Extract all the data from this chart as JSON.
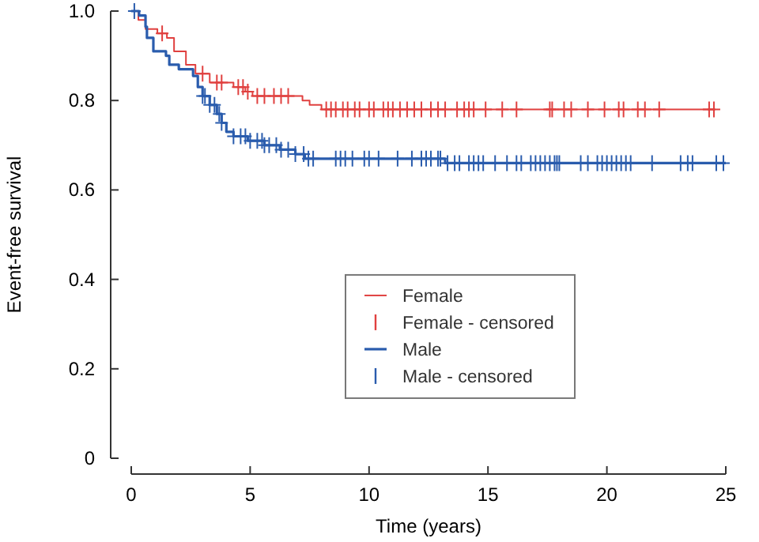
{
  "chart_data": {
    "type": "step",
    "xlabel": "Time (years)",
    "ylabel": "Event-free survival",
    "xlim": [
      0,
      25
    ],
    "xticks": [
      0,
      5,
      10,
      15,
      20,
      25
    ],
    "ylim": [
      0,
      1
    ],
    "yticks": [
      0,
      0.2,
      0.4,
      0.6,
      0.8,
      {
        "value": 1,
        "label": "1.0"
      }
    ],
    "grid": false,
    "legend": "bottom",
    "series": [
      {
        "name": "Female",
        "color": "#e0403f",
        "x": [
          0,
          0.3,
          0.6,
          1.1,
          1.5,
          1.8,
          2.3,
          2.7,
          3.3,
          4.3,
          4.8,
          5.1,
          7.2,
          7.5,
          8.0,
          24.5
        ],
        "values": [
          1,
          0.98,
          0.96,
          0.95,
          0.94,
          0.91,
          0.88,
          0.86,
          0.84,
          0.83,
          0.82,
          0.81,
          0.8,
          0.79,
          0.78,
          0.78
        ]
      },
      {
        "name": "Female - censored",
        "type": "scatter",
        "marker": "cross",
        "color": "#e0403f",
        "x": [
          1.3,
          3.0,
          3.6,
          3.8,
          4.5,
          4.7,
          4.9,
          5.3,
          5.6,
          6.0,
          6.3,
          6.6,
          8.2,
          8.4,
          8.6,
          8.9,
          9.1,
          9.4,
          9.6,
          10.0,
          10.2,
          10.6,
          10.8,
          11.0,
          11.3,
          11.6,
          11.9,
          12.2,
          12.6,
          12.9,
          13.2,
          13.7,
          14.0,
          14.2,
          14.4,
          14.9,
          15.6,
          16.2,
          17.6,
          17.7,
          18.2,
          18.5,
          19.2,
          19.9,
          20.5,
          20.7,
          21.3,
          21.6,
          22.2,
          24.3,
          24.5
        ],
        "values": [
          0.95,
          0.86,
          0.84,
          0.84,
          0.83,
          0.83,
          0.82,
          0.81,
          0.81,
          0.81,
          0.81,
          0.81,
          0.78,
          0.78,
          0.78,
          0.78,
          0.78,
          0.78,
          0.78,
          0.78,
          0.78,
          0.78,
          0.78,
          0.78,
          0.78,
          0.78,
          0.78,
          0.78,
          0.78,
          0.78,
          0.78,
          0.78,
          0.78,
          0.78,
          0.78,
          0.78,
          0.78,
          0.78,
          0.78,
          0.78,
          0.78,
          0.78,
          0.78,
          0.78,
          0.78,
          0.78,
          0.78,
          0.78,
          0.78,
          0.78,
          0.78
        ]
      },
      {
        "name": "Male",
        "color": "#2a5cad",
        "x": [
          0,
          0.33,
          0.6,
          0.66,
          0.93,
          1.46,
          1.6,
          2.0,
          2.6,
          2.8,
          3.0,
          3.3,
          3.6,
          3.8,
          4.0,
          4.3,
          4.9,
          5.6,
          6.25,
          6.9,
          7.3,
          13.2,
          25.0
        ],
        "values": [
          1,
          0.99,
          0.965,
          0.94,
          0.91,
          0.9,
          0.88,
          0.87,
          0.855,
          0.83,
          0.81,
          0.79,
          0.77,
          0.75,
          0.73,
          0.72,
          0.71,
          0.7,
          0.69,
          0.68,
          0.67,
          0.66,
          0.66
        ]
      },
      {
        "name": "Male - censored",
        "type": "scatter",
        "marker": "cross",
        "color": "#2a5cad",
        "x": [
          0.13,
          3.0,
          3.1,
          3.3,
          3.5,
          3.7,
          3.8,
          4.3,
          4.6,
          4.8,
          5.0,
          5.3,
          5.5,
          5.6,
          5.8,
          6.1,
          6.3,
          6.6,
          6.9,
          7.25,
          7.45,
          7.65,
          8.6,
          8.8,
          9.0,
          9.3,
          9.8,
          10.0,
          10.4,
          11.2,
          11.8,
          12.2,
          12.4,
          12.6,
          12.9,
          13.0,
          13.3,
          13.6,
          13.8,
          14.2,
          14.4,
          14.6,
          14.8,
          15.3,
          15.8,
          16.2,
          16.4,
          16.8,
          17.0,
          17.2,
          17.4,
          17.6,
          17.8,
          17.9,
          18.0,
          18.9,
          19.2,
          19.6,
          19.8,
          20.0,
          20.2,
          20.4,
          20.6,
          20.8,
          21.0,
          21.9,
          23.1,
          23.4,
          23.6,
          24.6,
          24.9
        ],
        "values": [
          1,
          0.81,
          0.81,
          0.79,
          0.79,
          0.77,
          0.75,
          0.72,
          0.72,
          0.72,
          0.71,
          0.71,
          0.71,
          0.7,
          0.7,
          0.7,
          0.69,
          0.69,
          0.68,
          0.68,
          0.67,
          0.67,
          0.67,
          0.67,
          0.67,
          0.67,
          0.67,
          0.67,
          0.67,
          0.67,
          0.67,
          0.67,
          0.67,
          0.67,
          0.67,
          0.67,
          0.66,
          0.66,
          0.66,
          0.66,
          0.66,
          0.66,
          0.66,
          0.66,
          0.66,
          0.66,
          0.66,
          0.66,
          0.66,
          0.66,
          0.66,
          0.66,
          0.66,
          0.66,
          0.66,
          0.66,
          0.66,
          0.66,
          0.66,
          0.66,
          0.66,
          0.66,
          0.66,
          0.66,
          0.66,
          0.66,
          0.66,
          0.66,
          0.66,
          0.66,
          0.66
        ]
      }
    ]
  }
}
